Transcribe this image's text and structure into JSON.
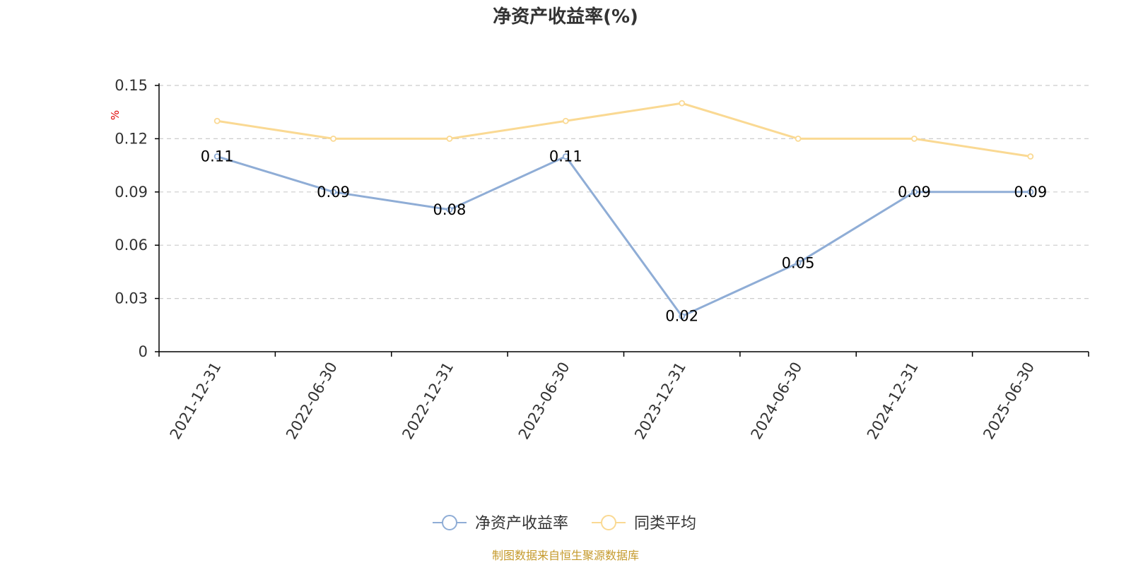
{
  "chart_data": {
    "type": "line",
    "title": "净资产收益率(%)",
    "ylabel": "%",
    "xlabel": "",
    "categories": [
      "2021-12-31",
      "2022-06-30",
      "2022-12-31",
      "2023-06-30",
      "2023-12-31",
      "2024-06-30",
      "2024-12-31",
      "2025-06-30"
    ],
    "series": [
      {
        "name": "净资产收益率",
        "values": [
          0.11,
          0.09,
          0.08,
          0.11,
          0.02,
          0.05,
          0.09,
          0.09
        ],
        "color": "#8fadd6",
        "show_labels": true
      },
      {
        "name": "同类平均",
        "values": [
          0.13,
          0.12,
          0.12,
          0.13,
          0.14,
          0.12,
          0.12,
          0.11
        ],
        "color": "#fad993",
        "show_labels": false
      }
    ],
    "ylim": [
      0,
      0.15
    ],
    "yticks": [
      "0",
      "0.03",
      "0.06",
      "0.09",
      "0.12",
      "0.15"
    ],
    "ytick_values": [
      0,
      0.03,
      0.06,
      0.09,
      0.12,
      0.15
    ],
    "grid": "horizontal-dashed",
    "legend_position": "bottom-center"
  },
  "source_text": "制图数据来自恒生聚源数据库",
  "colors": {
    "axis": "#000000",
    "grid": "#cccccc",
    "text": "#333333",
    "unit": "#e00000",
    "source": "#c59a2c"
  }
}
